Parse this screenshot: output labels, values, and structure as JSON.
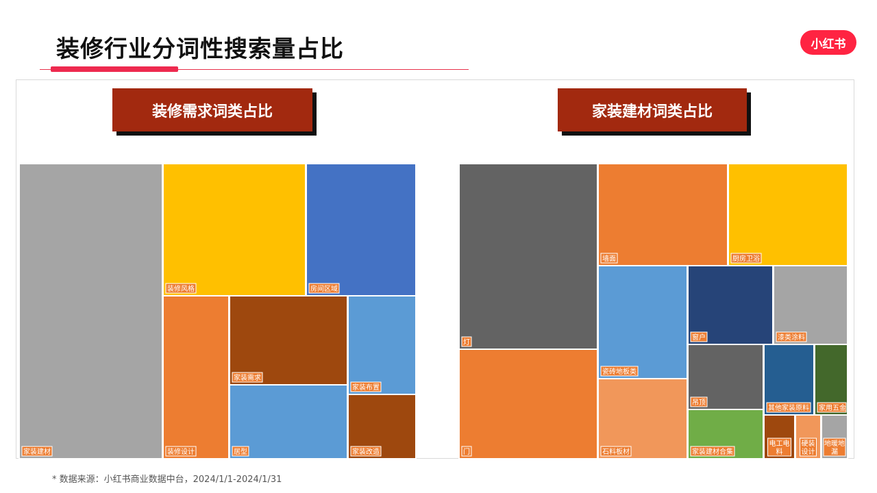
{
  "page": {
    "title": "装修行业分词性搜索量占比",
    "logo_text": "小红书",
    "source_note": "* 数据来源：小红书商业数据中台，2024/1/1-2024/1/31"
  },
  "colors": {
    "accent": "#ee2a4f",
    "banner": "#a2290f",
    "label_bg": "#ed7d31"
  },
  "chart_data": [
    {
      "type": "treemap",
      "title": "装修需求词类占比",
      "items": [
        {
          "name": "家装建材",
          "value": 32.5,
          "color": "#a5a5a5"
        },
        {
          "name": "装修风格",
          "value": 14.7,
          "color": "#ffc000"
        },
        {
          "name": "房间区域",
          "value": 11.3,
          "color": "#4472c4"
        },
        {
          "name": "装修设计",
          "value": 7.3,
          "color": "#ed7d31"
        },
        {
          "name": "家装需求",
          "value": 8.2,
          "color": "#9e480e"
        },
        {
          "name": "居型",
          "value": 7.9,
          "color": "#5b9bd5"
        },
        {
          "name": "家装布置",
          "value": 5.6,
          "color": "#5b9bd5"
        },
        {
          "name": "家装改造",
          "value": 3.6,
          "color": "#9e480e"
        }
      ]
    },
    {
      "type": "treemap",
      "title": "家装建材词类占比",
      "items": [
        {
          "name": "灯",
          "value": 17.5,
          "color": "#636363"
        },
        {
          "name": "门",
          "value": 12.1,
          "color": "#ed7d31"
        },
        {
          "name": "墙面",
          "value": 10.4,
          "color": "#ed7d31"
        },
        {
          "name": "厨房卫浴",
          "value": 8.1,
          "color": "#ffc000"
        },
        {
          "name": "瓷砖地板类",
          "value": 7.8,
          "color": "#5b9bd5"
        },
        {
          "name": "窗户",
          "value": 6.2,
          "color": "#264478"
        },
        {
          "name": "漆类涂料",
          "value": 5.6,
          "color": "#a5a5a5"
        },
        {
          "name": "石料板材",
          "value": 5.7,
          "color": "#f1975a"
        },
        {
          "name": "吊顶",
          "value": 4.0,
          "color": "#636363"
        },
        {
          "name": "家装建材合集",
          "value": 3.2,
          "color": "#70ad47"
        },
        {
          "name": "其他家装原料",
          "value": 3.1,
          "color": "#255e91"
        },
        {
          "name": "家用五金",
          "value": 2.0,
          "color": "#43682b"
        },
        {
          "name": "电工电料",
          "value": 1.6,
          "color": "#9e480e"
        },
        {
          "name": "硬装设计",
          "value": 1.2,
          "color": "#f1975a"
        },
        {
          "name": "地暖地漏",
          "value": 1.1,
          "color": "#a5a5a5"
        }
      ]
    }
  ]
}
